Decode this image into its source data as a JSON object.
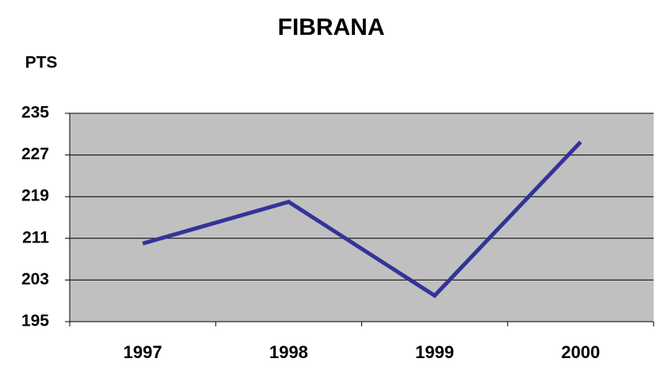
{
  "chart_data": {
    "type": "line",
    "title": "FIBRANA",
    "y_label": "PTS",
    "categories": [
      "1997",
      "1998",
      "1999",
      "2000"
    ],
    "series": [
      {
        "name": "FIBRANA",
        "color": "#333399",
        "values": [
          210,
          218,
          200,
          229.5
        ]
      }
    ],
    "ylim": [
      195,
      235
    ],
    "yticks": [
      195,
      203,
      211,
      219,
      227,
      235
    ],
    "grid": true,
    "plot_background": "#c0c0c0"
  }
}
